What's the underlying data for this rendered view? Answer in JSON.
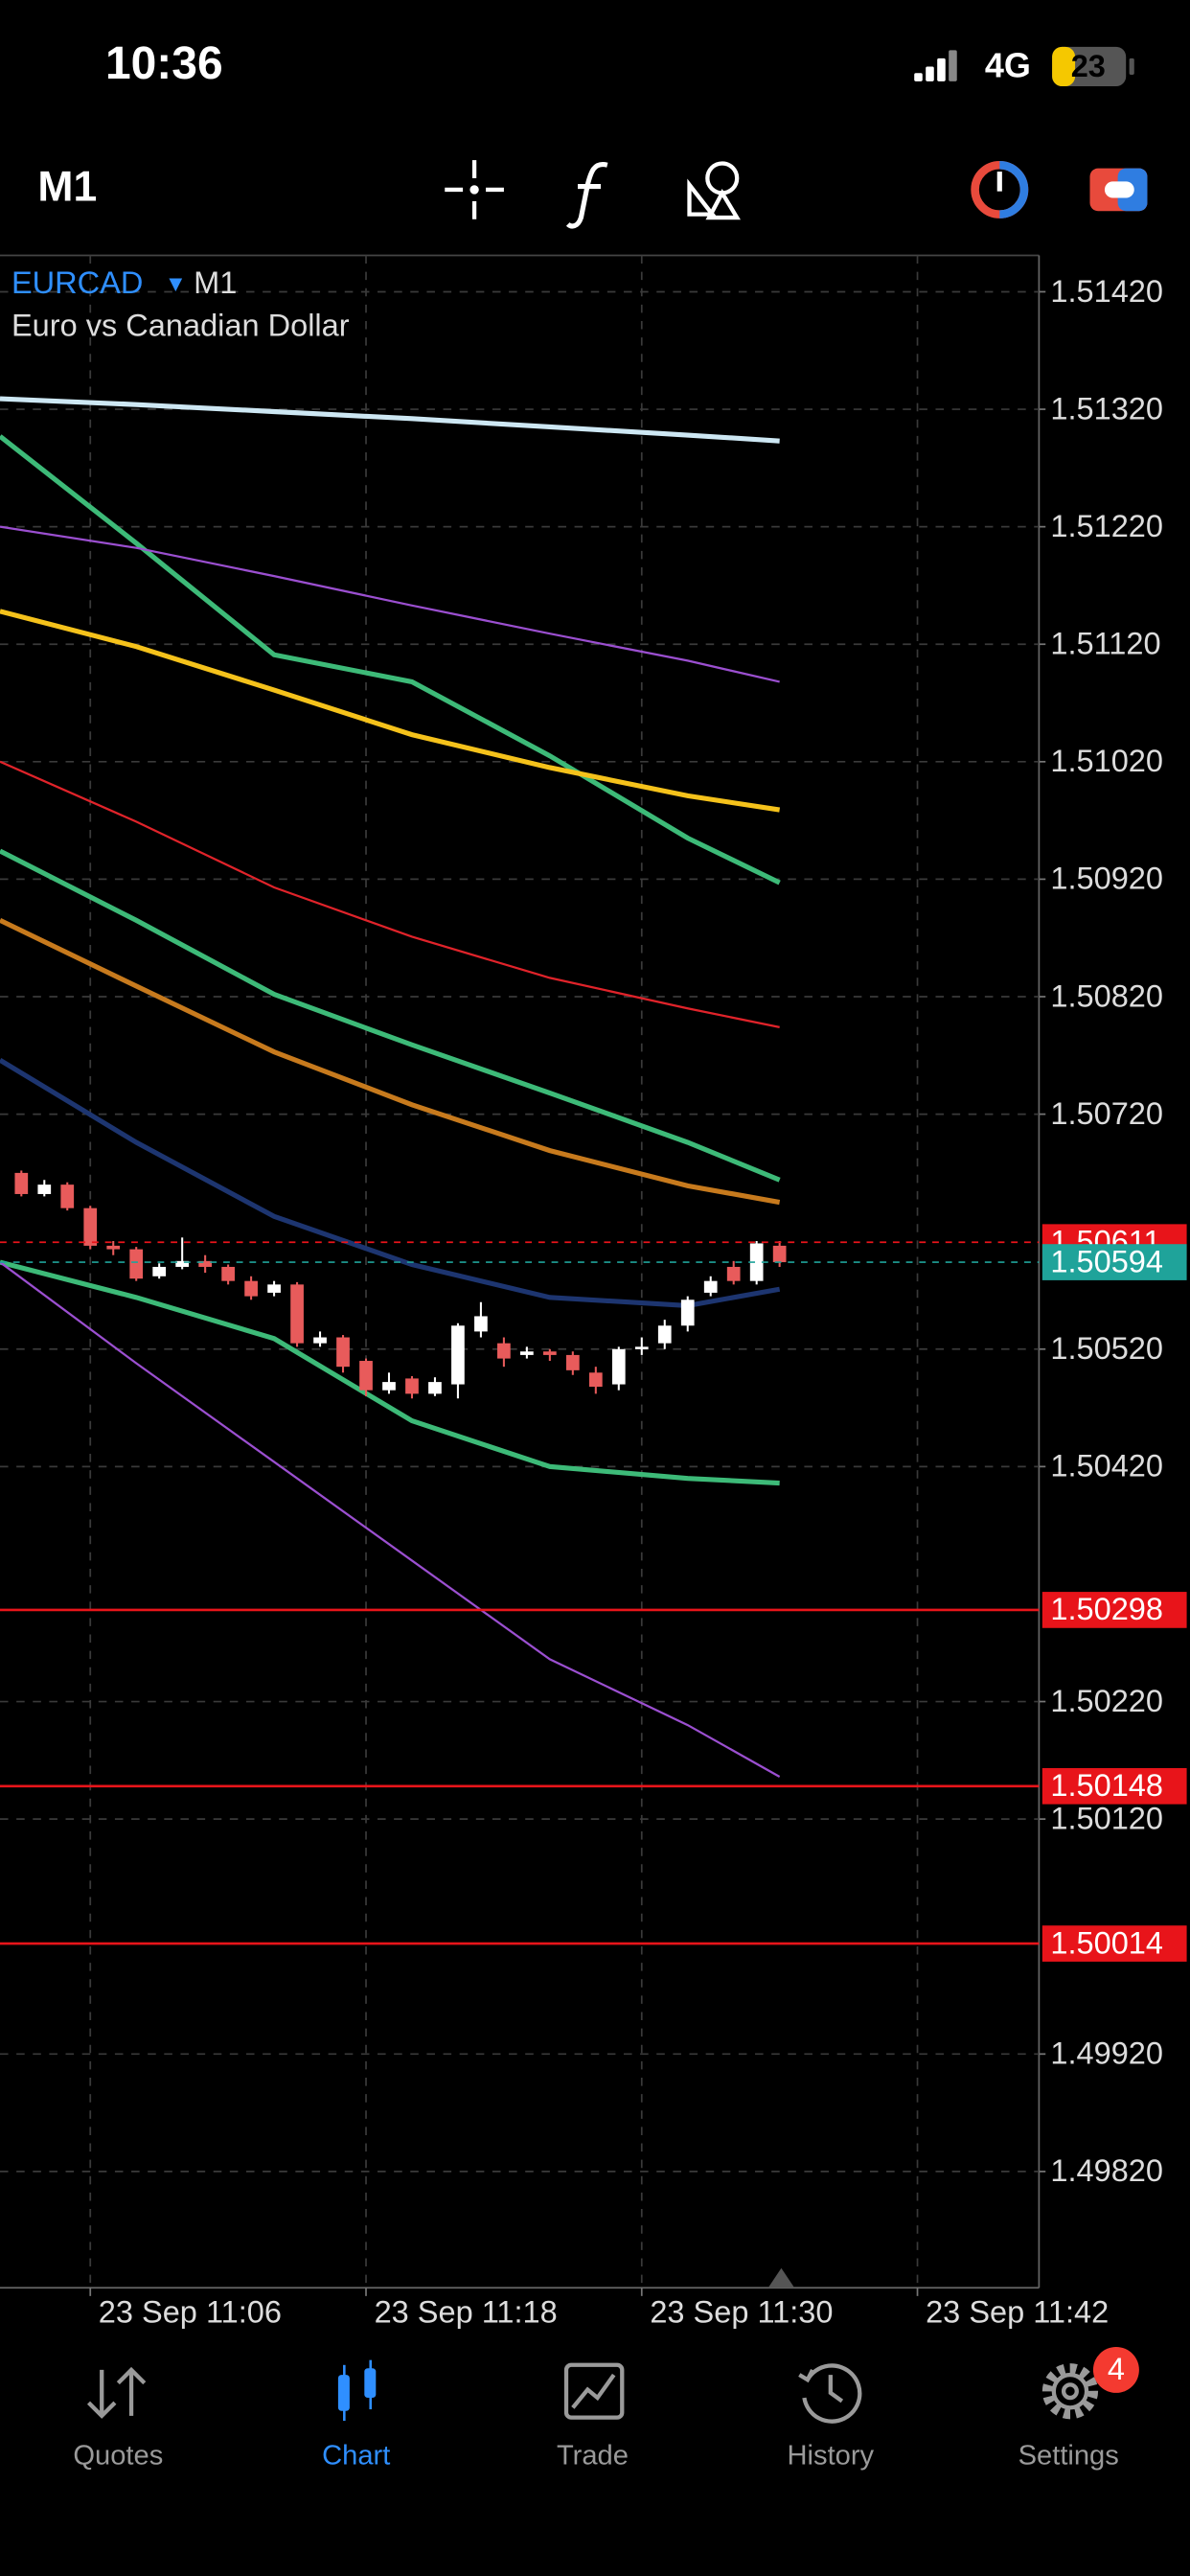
{
  "status_bar": {
    "time": "10:36",
    "network": "4G",
    "battery": "23"
  },
  "toolbar": {
    "timeframe": "M1"
  },
  "chart_data": {
    "type": "candlestick",
    "symbol": "EURCAD",
    "timeframe": "M1",
    "subtitle": "Euro vs Canadian Dollar",
    "xlim": [
      2.07,
      47.29
    ],
    "xticks": [
      {
        "value": 6,
        "label": "23 Sep 11:06"
      },
      {
        "value": 18,
        "label": "23 Sep 11:18"
      },
      {
        "value": 30,
        "label": "23 Sep 11:30"
      },
      {
        "value": 42,
        "label": "23 Sep 11:42"
      }
    ],
    "ylim": [
      1.49721,
      1.51451
    ],
    "yticks": [
      {
        "value": 1.5142,
        "label": "1.51420"
      },
      {
        "value": 1.5132,
        "label": "1.51320"
      },
      {
        "value": 1.5122,
        "label": "1.51220"
      },
      {
        "value": 1.5112,
        "label": "1.51120"
      },
      {
        "value": 1.5102,
        "label": "1.51020"
      },
      {
        "value": 1.5092,
        "label": "1.50920"
      },
      {
        "value": 1.5082,
        "label": "1.50820"
      },
      {
        "value": 1.5072,
        "label": "1.50720"
      },
      {
        "value": 1.5052,
        "label": "1.50520"
      },
      {
        "value": 1.5042,
        "label": "1.50420"
      },
      {
        "value": 1.5022,
        "label": "1.50220"
      },
      {
        "value": 1.5012,
        "label": "1.50120"
      },
      {
        "value": 1.4992,
        "label": "1.49920"
      },
      {
        "value": 1.4982,
        "label": "1.49820"
      }
    ],
    "grid": true,
    "up_color": "#ffffff",
    "down_color": "#e85b5b",
    "x": [
      3,
      4,
      5,
      6,
      7,
      8,
      9,
      10,
      11,
      12,
      13,
      14,
      15,
      16,
      17,
      18,
      19,
      20,
      21,
      22,
      23,
      24,
      25,
      26,
      27,
      28,
      29,
      30,
      31,
      32,
      33,
      34,
      35,
      36
    ],
    "open": [
      1.5067,
      1.50652,
      1.5066,
      1.5064,
      1.50608,
      1.50605,
      1.50582,
      1.5059,
      1.50595,
      1.5059,
      1.50578,
      1.50568,
      1.50575,
      1.50525,
      1.5053,
      1.5051,
      1.50485,
      1.50495,
      1.50482,
      1.5049,
      1.50535,
      1.50525,
      1.50515,
      1.50518,
      1.50515,
      1.505,
      1.5049,
      1.5052,
      1.50525,
      1.5054,
      1.50568,
      1.5059,
      1.50578,
      1.50608
    ],
    "high": [
      1.50672,
      1.50664,
      1.50662,
      1.50642,
      1.50612,
      1.50607,
      1.50593,
      1.50615,
      1.506,
      1.50592,
      1.50582,
      1.50578,
      1.50577,
      1.50535,
      1.50532,
      1.50512,
      1.505,
      1.50497,
      1.50496,
      1.50542,
      1.5056,
      1.5053,
      1.50522,
      1.5052,
      1.50518,
      1.50505,
      1.50522,
      1.5053,
      1.50545,
      1.50565,
      1.50582,
      1.50595,
      1.50612,
      1.50612
    ],
    "low": [
      1.5065,
      1.5065,
      1.50638,
      1.50605,
      1.506,
      1.50578,
      1.5058,
      1.50588,
      1.50585,
      1.50575,
      1.50562,
      1.50565,
      1.50522,
      1.50522,
      1.505,
      1.5048,
      1.50482,
      1.50478,
      1.5048,
      1.50478,
      1.5053,
      1.50505,
      1.50512,
      1.5051,
      1.50498,
      1.50482,
      1.50485,
      1.50515,
      1.5052,
      1.50535,
      1.50565,
      1.50575,
      1.50575,
      1.5059
    ],
    "close": [
      1.50652,
      1.5066,
      1.5064,
      1.50608,
      1.50605,
      1.5058,
      1.5059,
      1.50595,
      1.5059,
      1.50578,
      1.50565,
      1.50575,
      1.50525,
      1.5053,
      1.50505,
      1.50485,
      1.50492,
      1.50482,
      1.50492,
      1.5054,
      1.50548,
      1.50512,
      1.50518,
      1.50515,
      1.50502,
      1.50488,
      1.5052,
      1.50522,
      1.5054,
      1.50562,
      1.50578,
      1.50578,
      1.5061,
      1.50594
    ],
    "series": [
      {
        "color": "#cde7f3",
        "width": 3,
        "x": [
          2.07,
          8,
          14,
          20,
          26,
          32,
          36
        ],
        "values": [
          1.51329,
          1.51324,
          1.51318,
          1.51312,
          1.51305,
          1.51298,
          1.51293
        ]
      },
      {
        "color": "#3dba78",
        "width": 3,
        "x": [
          2.07,
          8,
          14,
          20,
          26,
          32,
          36
        ],
        "values": [
          1.51297,
          1.51206,
          1.51111,
          1.51088,
          1.51025,
          1.50955,
          1.50917
        ]
      },
      {
        "color": "#9b4fd0",
        "width": 1.3,
        "x": [
          2.07,
          8,
          14,
          20,
          26,
          32,
          36
        ],
        "values": [
          1.5122,
          1.51202,
          1.51178,
          1.51153,
          1.51129,
          1.51106,
          1.51088
        ]
      },
      {
        "color": "#f5c21b",
        "width": 3,
        "x": [
          2.07,
          8,
          14,
          20,
          26,
          32,
          36
        ],
        "values": [
          1.51148,
          1.51118,
          1.51081,
          1.51043,
          1.51015,
          1.50991,
          1.50979
        ]
      },
      {
        "color": "#e0232a",
        "width": 1.3,
        "x": [
          2.07,
          8,
          14,
          20,
          26,
          32,
          36
        ],
        "values": [
          1.5102,
          1.50969,
          1.50913,
          1.50871,
          1.50836,
          1.5081,
          1.50794
        ]
      },
      {
        "color": "#3dba78",
        "width": 3,
        "x": [
          2.07,
          8,
          14,
          20,
          26,
          32,
          36
        ],
        "values": [
          1.50944,
          1.50885,
          1.50822,
          1.50779,
          1.50738,
          1.50696,
          1.50664
        ]
      },
      {
        "color": "#c77a1d",
        "width": 3,
        "x": [
          2.07,
          8,
          14,
          20,
          26,
          32,
          36
        ],
        "values": [
          1.50885,
          1.50829,
          1.50773,
          1.50728,
          1.50689,
          1.50659,
          1.50645
        ]
      },
      {
        "color": "#1d3570",
        "width": 3,
        "x": [
          2.07,
          8,
          14,
          20,
          26,
          32,
          36
        ],
        "values": [
          1.50766,
          1.50696,
          1.50633,
          1.50592,
          1.50564,
          1.50557,
          1.50571
        ]
      },
      {
        "color": "#3dba78",
        "width": 3,
        "x": [
          2.07,
          8,
          14,
          20,
          26,
          32,
          36
        ],
        "values": [
          1.50594,
          1.50564,
          1.50529,
          1.50459,
          1.5042,
          1.5041,
          1.50406
        ]
      },
      {
        "color": "#9b4fd0",
        "width": 1.3,
        "x": [
          2.07,
          8,
          14,
          20,
          26,
          32,
          36
        ],
        "values": [
          1.50594,
          1.50508,
          1.50424,
          1.5034,
          1.50256,
          1.502,
          1.50156
        ]
      }
    ],
    "price_lines": [
      {
        "value": 1.50611,
        "color": "#e8141a",
        "style": "dashed"
      },
      {
        "value": 1.50594,
        "color": "#1fa39a",
        "style": "dashed"
      },
      {
        "value": 1.50298,
        "color": "#e8141a",
        "style": "solid"
      },
      {
        "value": 1.50148,
        "color": "#e8141a",
        "style": "solid"
      },
      {
        "value": 1.50014,
        "color": "#e8141a",
        "style": "solid"
      }
    ]
  },
  "tab_bar": {
    "tabs": [
      "Quotes",
      "Chart",
      "Trade",
      "History",
      "Settings"
    ],
    "active": 1,
    "settings_badge": "4"
  }
}
